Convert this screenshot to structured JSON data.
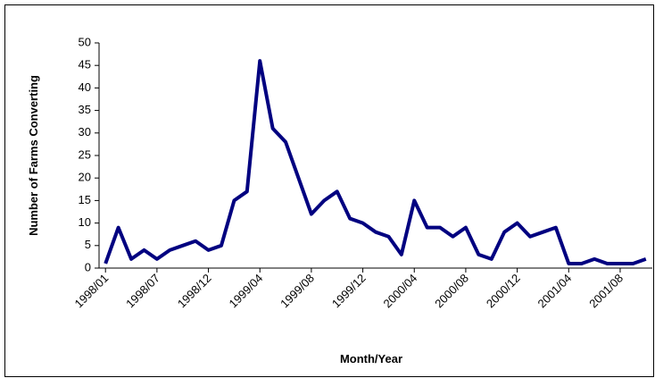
{
  "chart_data": {
    "type": "line",
    "x_label": "Month/Year",
    "y_label": "Number of Farms Converting",
    "categories": [
      "1998/01",
      null,
      null,
      null,
      "1998/07",
      null,
      null,
      null,
      "1998/12",
      null,
      null,
      null,
      "1999/04",
      null,
      null,
      null,
      "1999/08",
      null,
      null,
      null,
      "1999/12",
      null,
      null,
      null,
      "2000/04",
      null,
      null,
      null,
      "2000/08",
      null,
      null,
      null,
      "2000/12",
      null,
      null,
      null,
      "2001/04",
      null,
      null,
      null,
      "2001/08",
      null,
      null
    ],
    "values": [
      1,
      9,
      2,
      4,
      2,
      4,
      5,
      6,
      4,
      5,
      15,
      17,
      46,
      31,
      28,
      20,
      12,
      15,
      17,
      11,
      10,
      8,
      7,
      3,
      15,
      9,
      9,
      7,
      9,
      3,
      2,
      8,
      10,
      7,
      8,
      9,
      1,
      1,
      2,
      1,
      1,
      1,
      2
    ],
    "color": "#000080",
    "ylim": [
      0,
      50
    ],
    "yticks": [
      0,
      5,
      10,
      15,
      20,
      25,
      30,
      35,
      40,
      45,
      50
    ],
    "grid": false
  }
}
